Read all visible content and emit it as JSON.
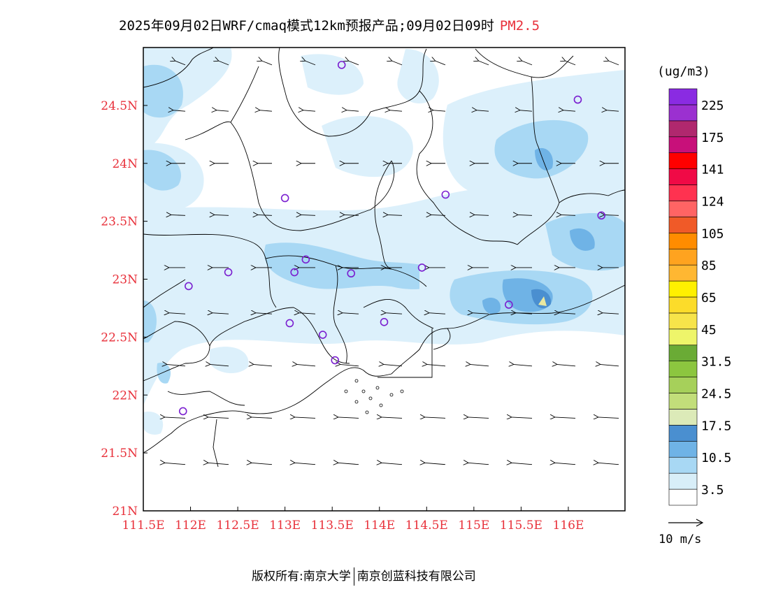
{
  "header": {
    "title": "2025年09月02日WRF/cmaq模式12km预报产品;09月02日09时",
    "species": "PM2.5"
  },
  "map": {
    "lon_range": [
      111.5,
      116.6
    ],
    "lat_range": [
      21.0,
      25.0
    ],
    "lon_ticks": [
      {
        "value": 111.5,
        "label": "111.5E"
      },
      {
        "value": 112,
        "label": "112E"
      },
      {
        "value": 112.5,
        "label": "112.5E"
      },
      {
        "value": 113,
        "label": "113E"
      },
      {
        "value": 113.5,
        "label": "113.5E"
      },
      {
        "value": 114,
        "label": "114E"
      },
      {
        "value": 114.5,
        "label": "114.5E"
      },
      {
        "value": 115,
        "label": "115E"
      },
      {
        "value": 115.5,
        "label": "115.5E"
      },
      {
        "value": 116,
        "label": "116E"
      }
    ],
    "lat_ticks": [
      {
        "value": 21,
        "label": "21N"
      },
      {
        "value": 21.5,
        "label": "21.5N"
      },
      {
        "value": 22,
        "label": "22N"
      },
      {
        "value": 22.5,
        "label": "22.5N"
      },
      {
        "value": 23,
        "label": "23N"
      },
      {
        "value": 23.5,
        "label": "23.5N"
      },
      {
        "value": 24,
        "label": "24N"
      },
      {
        "value": 24.5,
        "label": "24.5N"
      }
    ],
    "stations": [
      [
        113.6,
        24.85
      ],
      [
        116.1,
        24.55
      ],
      [
        113.0,
        23.7
      ],
      [
        114.7,
        23.73
      ],
      [
        116.35,
        23.55
      ],
      [
        113.22,
        23.17
      ],
      [
        112.4,
        23.06
      ],
      [
        113.1,
        23.06
      ],
      [
        113.7,
        23.05
      ],
      [
        114.45,
        23.1
      ],
      [
        111.98,
        22.94
      ],
      [
        113.05,
        22.62
      ],
      [
        114.05,
        22.63
      ],
      [
        113.4,
        22.52
      ],
      [
        113.53,
        22.3
      ],
      [
        115.37,
        22.78
      ],
      [
        111.92,
        21.86
      ]
    ],
    "colors": {
      "lightest": "#dcf0fb",
      "light": "#a8d8f4",
      "medium": "#6fb3e6",
      "dark": "#4a8fd0",
      "station": "#7a1fd0",
      "highlight": "#e8e8a0"
    }
  },
  "colorbar": {
    "unit": "(ug/m3)",
    "colors": [
      "#ffffff",
      "#d8eef8",
      "#a8d8f4",
      "#6fb3e6",
      "#4a8fd0",
      "#dceab8",
      "#c2de7a",
      "#a6d05a",
      "#8cc63f",
      "#6aab35",
      "#eef56a",
      "#f7e44a",
      "#fcdc2a",
      "#fff000",
      "#ffb732",
      "#ffa31f",
      "#ff8c00",
      "#f05a28",
      "#ff6464",
      "#ff3250",
      "#f00a46",
      "#ff0000",
      "#c8107a",
      "#b0286e",
      "#9b30d0",
      "#8a2be2"
    ],
    "labels": [
      "3.5",
      "10.5",
      "17.5",
      "24.5",
      "31.5",
      "45",
      "65",
      "85",
      "105",
      "124",
      "141",
      "175",
      "225"
    ]
  },
  "wind_reference": {
    "label": "10 m/s"
  },
  "wind_vectors": {
    "rows": [
      {
        "lat": 24.85,
        "u": -5,
        "v": 2
      },
      {
        "lat": 24.45,
        "u": -6,
        "v": 0.5
      },
      {
        "lat": 24.0,
        "u": -7,
        "v": 0
      },
      {
        "lat": 23.55,
        "u": -7,
        "v": 0.3
      },
      {
        "lat": 23.1,
        "u": -8,
        "v": 0
      },
      {
        "lat": 22.7,
        "u": -8,
        "v": 0.5
      },
      {
        "lat": 22.25,
        "u": -9,
        "v": 0.8
      },
      {
        "lat": 21.8,
        "u": -10,
        "v": 0.5
      },
      {
        "lat": 21.4,
        "u": -10,
        "v": 0.8
      }
    ]
  },
  "footer": {
    "left": "版权所有:南京大学",
    "right": "南京创蓝科技有限公司"
  }
}
